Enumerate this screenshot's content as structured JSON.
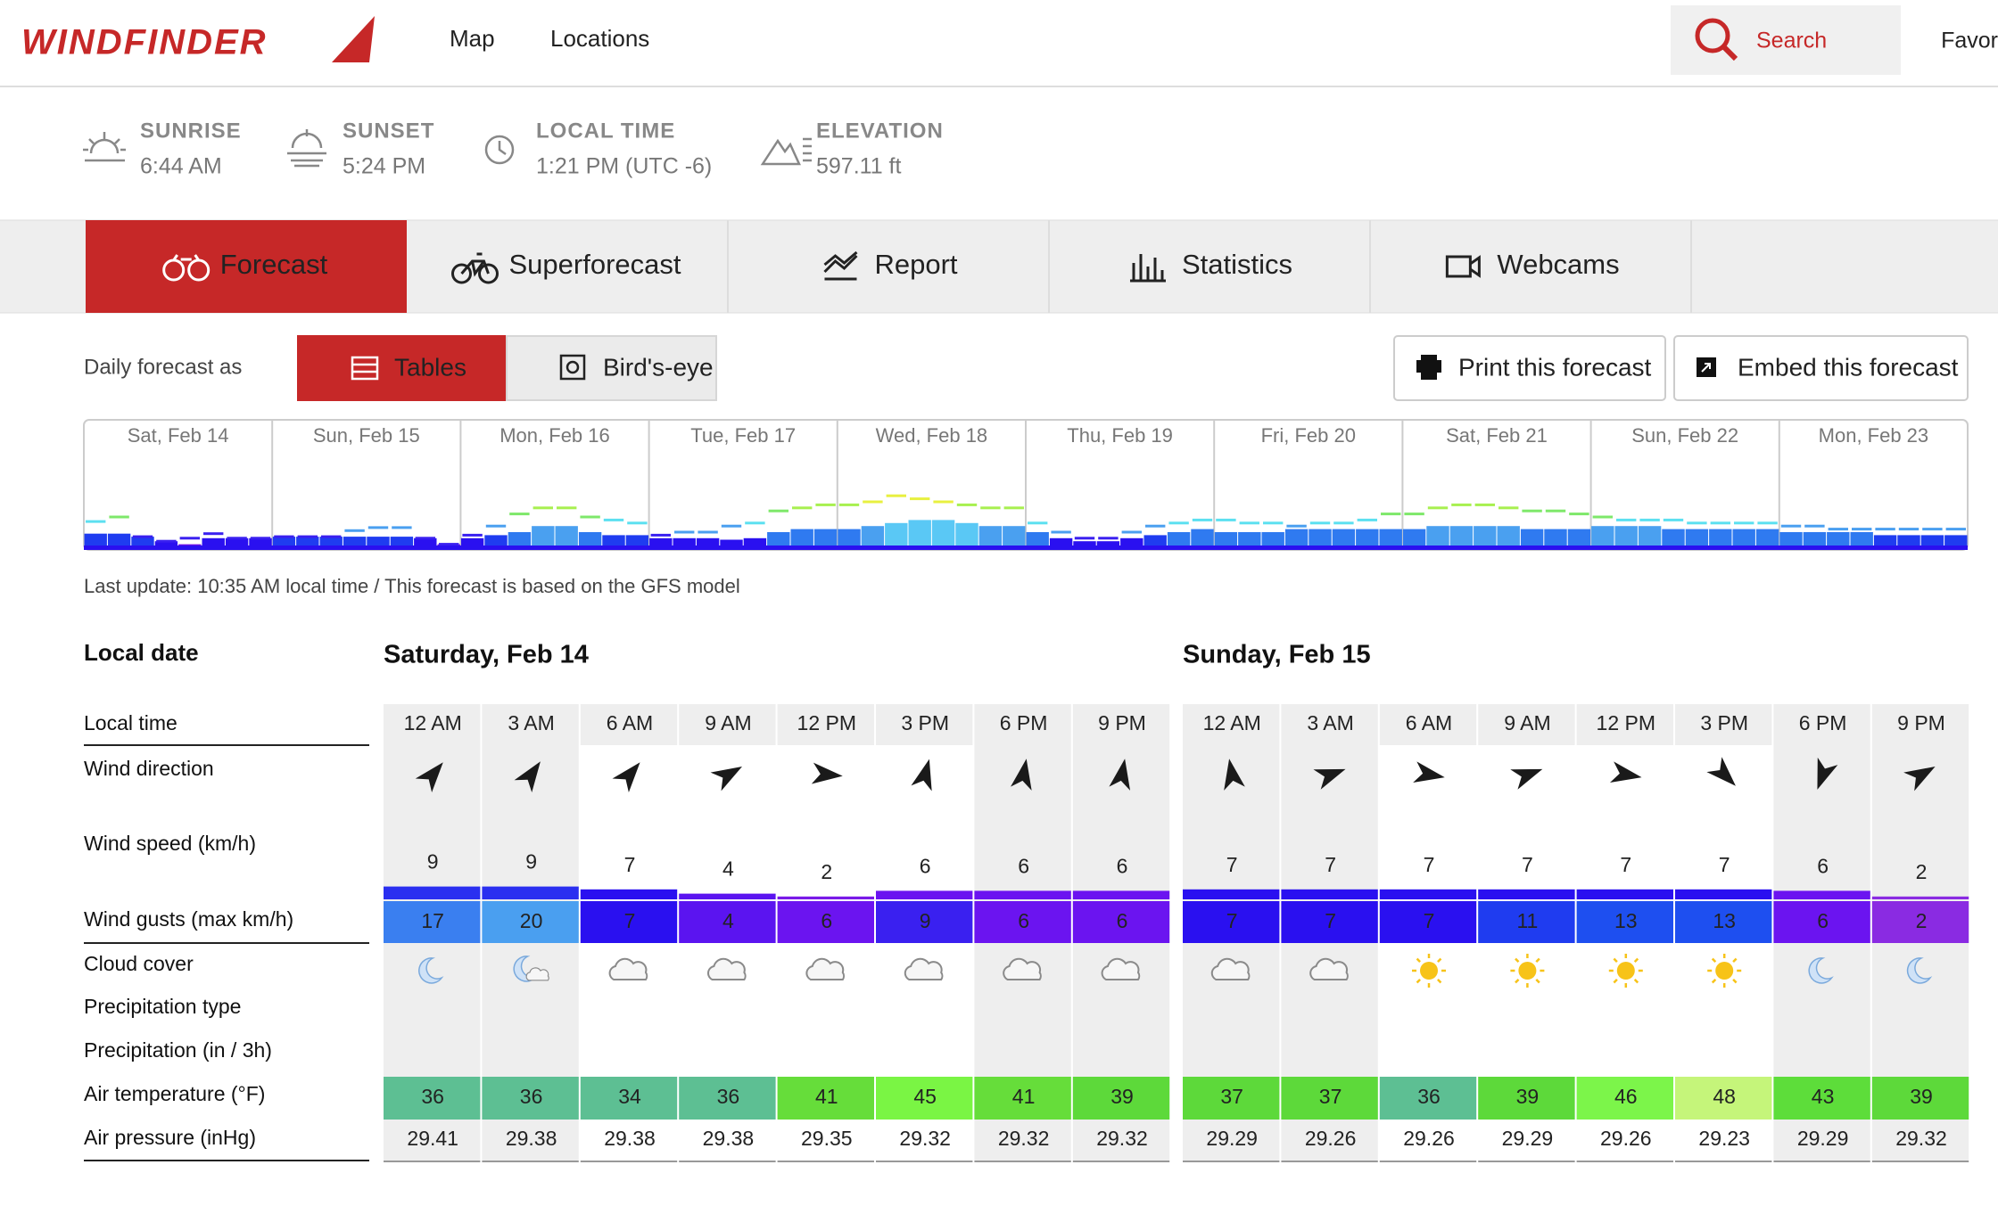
{
  "header": {
    "logo": "WINDFINDER",
    "nav": [
      "Map",
      "Locations"
    ],
    "search": "Search",
    "favorites": "Favor"
  },
  "spot_info": [
    {
      "label": "SUNRISE",
      "value": "6:44 AM"
    },
    {
      "label": "SUNSET",
      "value": "5:24 PM"
    },
    {
      "label": "LOCAL TIME",
      "value": "1:21 PM (UTC -6)"
    },
    {
      "label": "ELEVATION",
      "value": "597.11 ft"
    }
  ],
  "tabs": [
    "Forecast",
    "Superforecast",
    "Report",
    "Statistics",
    "Webcams"
  ],
  "active_tab": 0,
  "view": {
    "label": "Daily forecast as",
    "options": [
      "Tables",
      "Bird's-eye"
    ],
    "active": 0,
    "actions": [
      "Print this forecast",
      "Embed this forecast"
    ]
  },
  "overview": {
    "days": [
      "Sat, Feb 14",
      "Sun, Feb 15",
      "Mon, Feb 16",
      "Tue, Feb 17",
      "Wed, Feb 18",
      "Thu, Feb 19",
      "Fri, Feb 20",
      "Sat, Feb 21",
      "Sun, Feb 22",
      "Mon, Feb 23"
    ],
    "wind": [
      9,
      9,
      7,
      4,
      2,
      6,
      6,
      6,
      7,
      7,
      7,
      7,
      7,
      7,
      6,
      2,
      6,
      8,
      10,
      14,
      14,
      10,
      8,
      8,
      6,
      6,
      6,
      5,
      6,
      10,
      12,
      12,
      12,
      14,
      16,
      18,
      18,
      16,
      14,
      14,
      10,
      6,
      4,
      4,
      6,
      8,
      10,
      12,
      10,
      10,
      10,
      12,
      12,
      12,
      12,
      12,
      12,
      14,
      14,
      14,
      14,
      12,
      12,
      12,
      14,
      14,
      14,
      12,
      12,
      12,
      12,
      12,
      10,
      10,
      10,
      10,
      8,
      8,
      8,
      8
    ],
    "gusts": [
      17,
      20,
      7,
      4,
      6,
      9,
      6,
      6,
      7,
      7,
      7,
      11,
      13,
      13,
      6,
      2,
      8,
      14,
      22,
      26,
      26,
      20,
      18,
      16,
      8,
      10,
      10,
      14,
      16,
      24,
      26,
      28,
      28,
      30,
      34,
      32,
      30,
      28,
      26,
      26,
      16,
      10,
      6,
      6,
      10,
      14,
      16,
      18,
      18,
      16,
      16,
      14,
      16,
      16,
      18,
      22,
      22,
      26,
      28,
      28,
      26,
      24,
      24,
      22,
      20,
      18,
      18,
      18,
      16,
      16,
      16,
      16,
      14,
      14,
      12,
      12,
      12,
      12,
      12,
      12
    ],
    "wind_scale": {
      "limits": [
        0,
        4,
        7,
        10,
        13,
        16,
        19
      ],
      "colors": [
        "#6a10e8",
        "#2a10f0",
        "#1f3cf0",
        "#2f7af0",
        "#4aa0f0",
        "#5ac8f5",
        "#6ee0f0"
      ]
    },
    "gust_scale": {
      "limits": [
        0,
        10,
        15,
        20,
        25,
        30
      ],
      "colors": [
        "#3a20f0",
        "#4a9ff0",
        "#5ce0f0",
        "#7ee86a",
        "#a8f050",
        "#e8f040"
      ]
    }
  },
  "last_update": "Last update: 10:35 AM local time / This forecast is based on the GFS model",
  "table": {
    "date_label": "Local date",
    "row_labels": [
      "Local time",
      "Wind direction",
      "Wind speed (km/h)",
      "Wind gusts (max km/h)",
      "Cloud cover",
      "Precipitation type",
      "Precipitation (in / 3h)",
      "Air temperature (°F)",
      "Air pressure (inHg)"
    ],
    "days": [
      {
        "date": "Saturday, Feb 14",
        "times": [
          "12 AM",
          "3 AM",
          "6 AM",
          "9 AM",
          "12 PM",
          "3 PM",
          "6 PM",
          "9 PM"
        ],
        "night": [
          true,
          true,
          false,
          false,
          false,
          false,
          true,
          true
        ],
        "wind_direction": [
          40,
          35,
          40,
          60,
          95,
          15,
          10,
          10
        ],
        "wind_speed": [
          9,
          9,
          7,
          4,
          2,
          6,
          6,
          6
        ],
        "wind_color": [
          "#2a2ff0",
          "#2a2ff0",
          "#2a10f0",
          "#5b14f0",
          "#7a1ae8",
          "#6b14f0",
          "#6b14f0",
          "#6b14f0"
        ],
        "gusts": [
          17,
          20,
          7,
          4,
          6,
          9,
          6,
          6
        ],
        "gust_color": [
          "#3a7ff0",
          "#4a9ff0",
          "#2a10f0",
          "#5b14f0",
          "#6b14f0",
          "#3a20f0",
          "#6b14f0",
          "#6b14f0"
        ],
        "cloud": [
          "moon",
          "moon-cloud",
          "cloud",
          "cloud",
          "cloud",
          "cloud",
          "cloud",
          "cloud"
        ],
        "temperature": [
          36,
          36,
          34,
          36,
          41,
          45,
          41,
          39
        ],
        "temp_color": [
          "#5dbf93",
          "#5dbf93",
          "#5dbf93",
          "#5dbf93",
          "#66dd3a",
          "#7af544",
          "#66dd3a",
          "#5dd93a"
        ],
        "pressure": [
          29.41,
          29.38,
          29.38,
          29.38,
          29.35,
          29.32,
          29.32,
          29.32
        ]
      },
      {
        "date": "Sunday, Feb 15",
        "times": [
          "12 AM",
          "3 AM",
          "6 AM",
          "9 AM",
          "12 PM",
          "3 PM",
          "6 PM",
          "9 PM"
        ],
        "night": [
          true,
          true,
          false,
          false,
          false,
          false,
          true,
          true
        ],
        "wind_direction": [
          350,
          70,
          100,
          70,
          100,
          135,
          200,
          60
        ],
        "wind_speed": [
          7,
          7,
          7,
          7,
          7,
          7,
          6,
          2
        ],
        "wind_color": [
          "#2a10f0",
          "#2a10f0",
          "#2a10f0",
          "#2a10f0",
          "#2a10f0",
          "#2a10f0",
          "#6b14f0",
          "#8a2be2"
        ],
        "gusts": [
          7,
          7,
          7,
          11,
          13,
          13,
          6,
          2
        ],
        "gust_color": [
          "#2a10f0",
          "#2a10f0",
          "#2a10f0",
          "#1f3cf0",
          "#1e4ff0",
          "#1e4ff0",
          "#6b14f0",
          "#8a2be2"
        ],
        "cloud": [
          "cloud",
          "cloud",
          "sun",
          "sun",
          "sun",
          "sun",
          "moon",
          "moon"
        ],
        "temperature": [
          37,
          37,
          36,
          39,
          46,
          48,
          43,
          39
        ],
        "temp_color": [
          "#5dd93a",
          "#5dd93a",
          "#5dbf93",
          "#5dd93a",
          "#7cf54a",
          "#c5f57a",
          "#5ddd3a",
          "#5dd93a"
        ],
        "pressure": [
          29.29,
          29.26,
          29.26,
          29.29,
          29.26,
          29.23,
          29.29,
          29.32
        ]
      }
    ]
  }
}
